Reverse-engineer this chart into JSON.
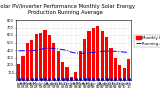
{
  "title1": "Solar PV/Inverter Performance Monthly Solar Energy",
  "title2": "Production Running Average",
  "bar_color": "#ff0000",
  "line_color": "#0000ff",
  "dot_color": "#0000cc",
  "bg_color": "#ffffff",
  "grid_color": "#c8c8c8",
  "categories": [
    "Jan\n08",
    "Feb\n08",
    "Mar\n08",
    "Apr\n08",
    "May\n08",
    "Jun\n08",
    "Jul\n08",
    "Aug\n08",
    "Sep\n08",
    "Oct\n08",
    "Nov\n08",
    "Dec\n08",
    "Jan\n09",
    "Feb\n09",
    "Mar\n09",
    "Apr\n09",
    "May\n09",
    "Jun\n09",
    "Jul\n09",
    "Aug\n09",
    "Sep\n09",
    "Oct\n09",
    "Nov\n09",
    "Dec\n09",
    "Jan\n10",
    "Feb\n10"
  ],
  "values": [
    220,
    320,
    490,
    530,
    610,
    630,
    670,
    600,
    500,
    390,
    240,
    170,
    45,
    110,
    390,
    550,
    650,
    700,
    715,
    660,
    570,
    430,
    290,
    195,
    155,
    275
  ],
  "running_avg": [
    390,
    390,
    390,
    390,
    400,
    410,
    420,
    425,
    420,
    415,
    405,
    395,
    370,
    360,
    355,
    358,
    362,
    368,
    375,
    382,
    385,
    385,
    382,
    378,
    372,
    368
  ],
  "ylim": [
    0,
    800
  ],
  "yticks": [
    100,
    200,
    300,
    400,
    500,
    600,
    700,
    800
  ],
  "legend_bar": "Monthly kWh",
  "legend_line": "Running Avg",
  "title_fontsize": 3.8,
  "tick_fontsize": 2.5,
  "legend_fontsize": 2.8
}
